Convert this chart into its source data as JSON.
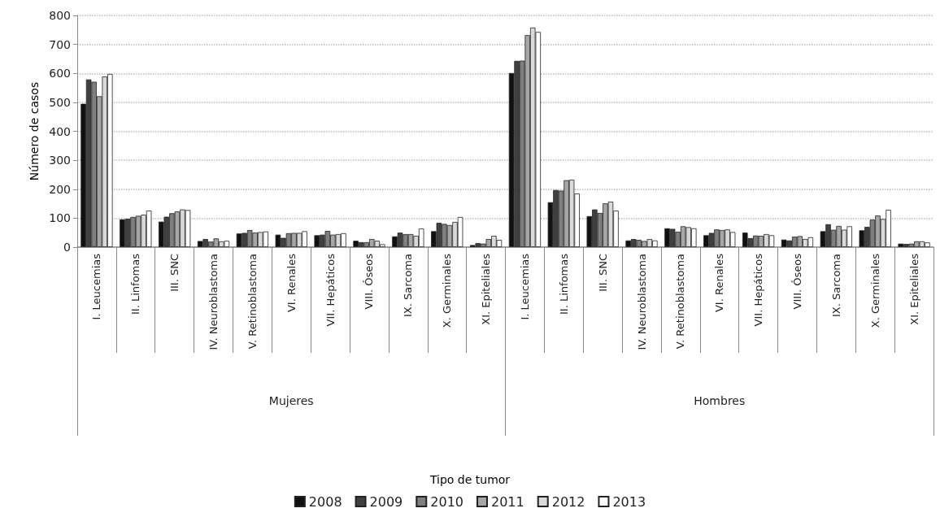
{
  "chart_data": {
    "type": "bar",
    "ylabel": "Número de casos",
    "categories": [
      "I. Leucemias",
      "II. Linfomas",
      "III. SNC",
      "IV. Neuroblastoma",
      "V. Retinoblastoma",
      "VI. Renales",
      "VII. Hepáticos",
      "VIII. Óseos",
      "IX. Sarcoma",
      "X. Germinales",
      "XI. Epiteliales",
      "I. Leucemias",
      "II. Linfomas",
      "III. SNC",
      "IV. Neuroblastoma",
      "V. Retinoblastoma",
      "VI. Renales",
      "VII. Hepáticos",
      "VIII. Óseos",
      "IX. Sarcoma",
      "X. Germinales",
      "XI. Epiteliales"
    ],
    "annotations": [
      "Mujeres",
      "Hombres",
      "Tipo de tumor"
    ],
    "series": [
      {
        "name": "2008",
        "color": "#111111",
        "values": [
          495,
          96,
          88,
          21,
          47,
          43,
          41,
          22,
          37,
          55,
          7,
          601,
          155,
          107,
          23,
          65,
          41,
          50,
          26,
          55,
          58,
          12
        ]
      },
      {
        "name": "2009",
        "color": "#404040",
        "values": [
          579,
          98,
          105,
          28,
          49,
          32,
          43,
          17,
          50,
          84,
          14,
          643,
          197,
          130,
          28,
          63,
          49,
          31,
          23,
          79,
          70,
          11
        ]
      },
      {
        "name": "2010",
        "color": "#7f7f7f",
        "values": [
          571,
          104,
          117,
          19,
          59,
          48,
          56,
          17,
          45,
          80,
          12,
          644,
          195,
          118,
          25,
          53,
          61,
          40,
          36,
          60,
          95,
          12
        ]
      },
      {
        "name": "2011",
        "color": "#a6a6a6",
        "values": [
          521,
          108,
          123,
          30,
          50,
          49,
          43,
          28,
          45,
          76,
          28,
          732,
          231,
          151,
          21,
          72,
          59,
          39,
          38,
          73,
          109,
          20
        ]
      },
      {
        "name": "2012",
        "color": "#d9d9d9",
        "values": [
          589,
          112,
          130,
          20,
          52,
          49,
          45,
          22,
          39,
          87,
          39,
          758,
          233,
          157,
          28,
          69,
          61,
          45,
          28,
          60,
          97,
          20
        ]
      },
      {
        "name": "2013",
        "color": "#ffffff",
        "values": [
          598,
          126,
          128,
          22,
          54,
          55,
          48,
          10,
          64,
          104,
          25,
          743,
          185,
          126,
          23,
          65,
          52,
          41,
          34,
          72,
          129,
          16
        ]
      }
    ],
    "ylim": [
      0,
      800
    ],
    "yticks": [
      0,
      100,
      200,
      300,
      400,
      500,
      600,
      700,
      800
    ],
    "grid": "y",
    "legend": "bottom"
  }
}
